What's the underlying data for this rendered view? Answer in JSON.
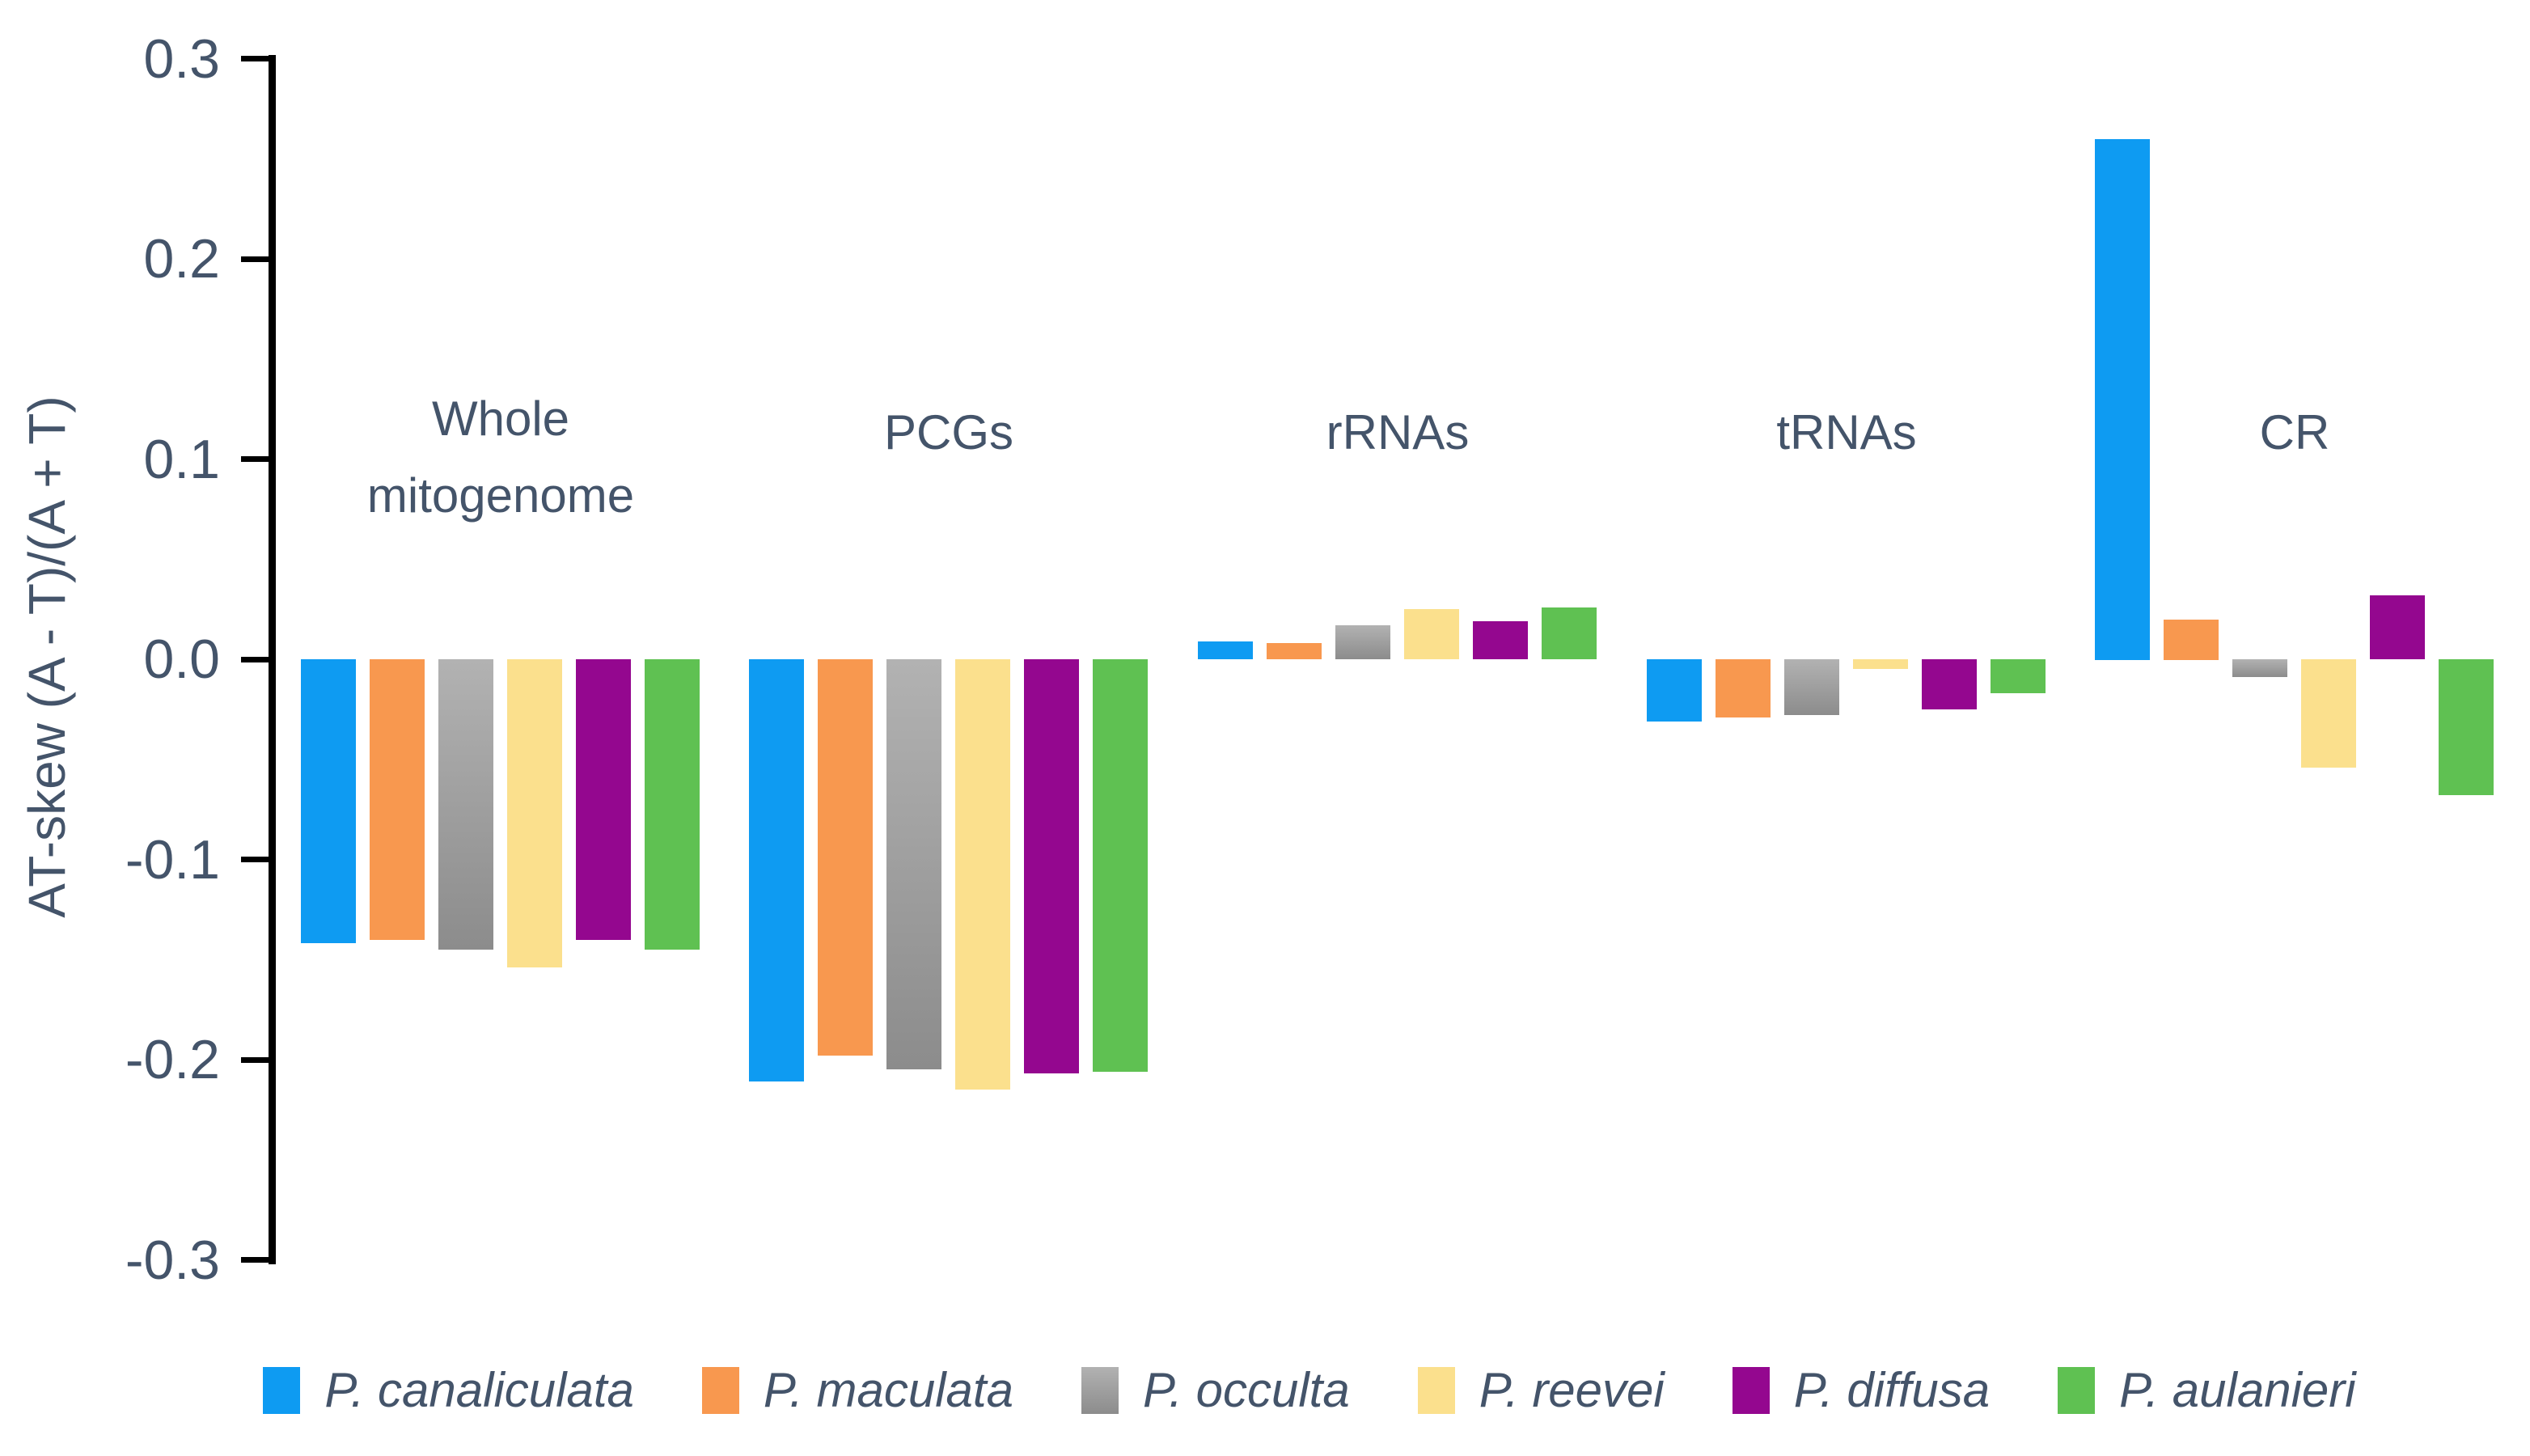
{
  "chart_data": {
    "type": "bar",
    "title": "",
    "xlabel": "",
    "ylabel": "AT-skew (A - T)/(A + T)",
    "ylim": [
      -0.3,
      0.3
    ],
    "ytick_labels": [
      "0.3",
      "0.2",
      "0.1",
      "0.0",
      "-0.1",
      "-0.2",
      "-0.3"
    ],
    "grid": false,
    "legend_position": "bottom",
    "text_color": "#44546A",
    "axis_color": "#000000",
    "categories": [
      "Whole mitogenome",
      "PCGs",
      "rRNAs",
      "tRNAs",
      "CR"
    ],
    "series": [
      {
        "name": "P. canaliculata",
        "color": "#0E9BF2",
        "values": [
          -0.142,
          -0.211,
          0.009,
          -0.031,
          0.26
        ]
      },
      {
        "name": "P. maculata",
        "color": "#F8984F",
        "values": [
          -0.14,
          -0.198,
          0.008,
          -0.029,
          0.02
        ]
      },
      {
        "name": "P. occulta",
        "color": "#9E9E9E",
        "color_top": "#B2B2B2",
        "color_bottom": "#8C8C8C",
        "values": [
          -0.145,
          -0.205,
          0.017,
          -0.028,
          -0.009
        ]
      },
      {
        "name": "P. reevei",
        "color": "#FBE08D",
        "values": [
          -0.154,
          -0.215,
          0.025,
          -0.005,
          -0.054
        ]
      },
      {
        "name": "P. diffusa",
        "color": "#94078F",
        "values": [
          -0.14,
          -0.207,
          0.019,
          -0.025,
          0.032
        ]
      },
      {
        "name": "P. aulanieri",
        "color": "#5FC152",
        "values": [
          -0.145,
          -0.206,
          0.026,
          -0.017,
          -0.068
        ]
      }
    ]
  }
}
